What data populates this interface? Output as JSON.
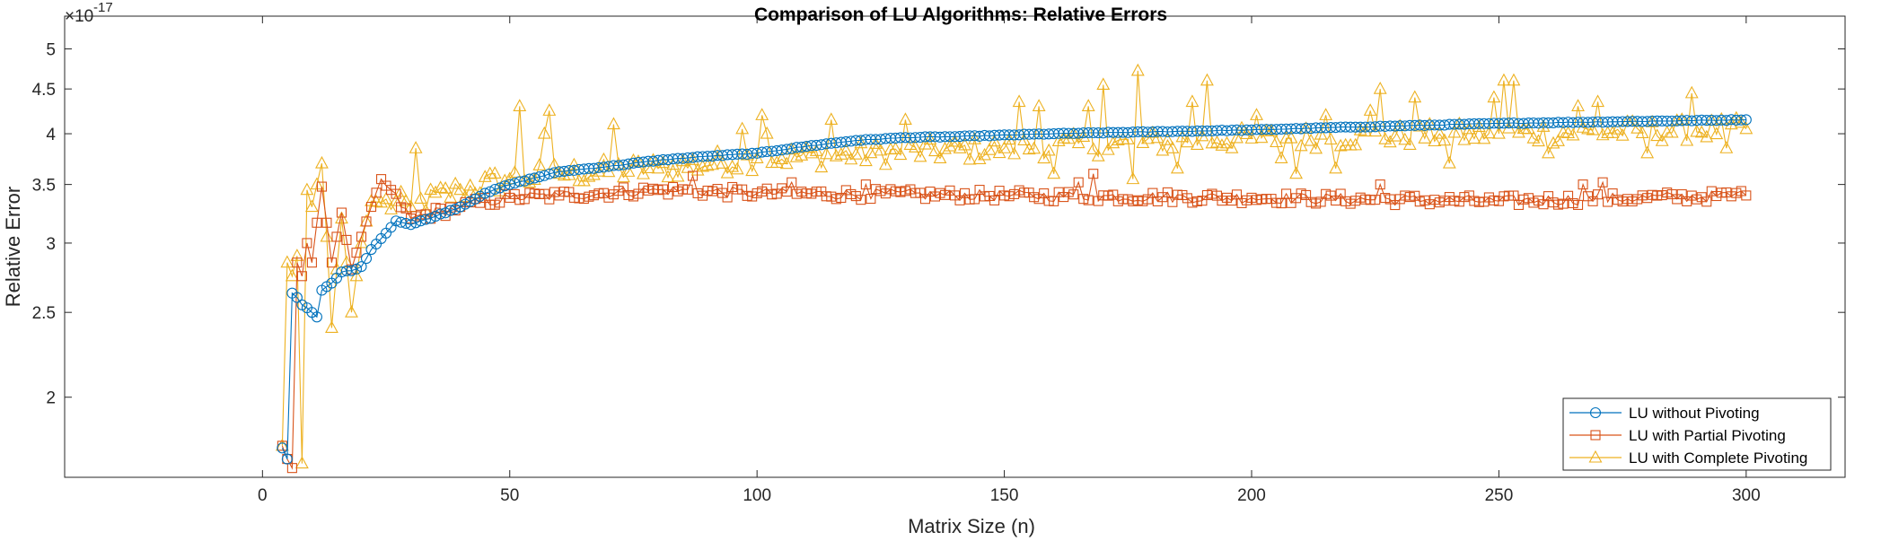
{
  "chart_data": {
    "type": "line",
    "title": "Comparison of LU Algorithms: Relative Errors",
    "xlabel": "Matrix Size (n)",
    "ylabel": "Relative Error",
    "y_exponent_label": "×10",
    "y_exponent_power": "-17",
    "y_scale": "log",
    "xlim": [
      -40,
      320
    ],
    "ylim": [
      1.62,
      5.45
    ],
    "x_ticks": [
      0,
      50,
      100,
      150,
      200,
      250,
      300
    ],
    "x_tick_labels": [
      "0",
      "50",
      "100",
      "150",
      "200",
      "250",
      "300"
    ],
    "y_ticks": [
      2,
      2.5,
      3,
      3.5,
      4,
      4.5,
      5
    ],
    "y_tick_labels": [
      "2",
      "2.5",
      "3",
      "3.5",
      "4",
      "4.5",
      "5"
    ],
    "legend_position": "bottom-right",
    "x_range": [
      4,
      300
    ],
    "series": [
      {
        "name": "LU without Pivoting",
        "color": "#0072BD",
        "marker": "circle",
        "key_values": {
          "4": 1.75,
          "5": 1.7,
          "6": 2.63,
          "7": 2.6,
          "8": 2.55,
          "9": 2.53,
          "10": 2.5,
          "11": 2.47,
          "12": 2.65,
          "14": 2.7,
          "16": 2.78,
          "18": 2.79,
          "20": 2.82,
          "22": 2.95,
          "25": 3.08,
          "27": 3.18,
          "30": 3.15,
          "35": 3.22,
          "40": 3.3,
          "45": 3.42,
          "50": 3.5,
          "60": 3.62,
          "70": 3.67,
          "80": 3.73,
          "90": 3.77,
          "100": 3.8,
          "110": 3.87,
          "120": 3.93,
          "130": 3.96,
          "140": 3.97,
          "160": 4.0,
          "180": 4.02,
          "200": 4.04,
          "220": 4.07,
          "250": 4.11,
          "275": 4.13,
          "300": 4.15
        }
      },
      {
        "name": "LU with Partial Pivoting",
        "color": "#D95319",
        "marker": "square",
        "key_values": {
          "4": 1.76,
          "5": 1.7,
          "6": 1.66,
          "7": 2.85,
          "8": 2.75,
          "9": 3.0,
          "10": 2.85,
          "12": 3.48,
          "14": 2.85,
          "16": 3.25,
          "18": 2.8,
          "20": 3.05,
          "22": 3.3,
          "24": 3.55,
          "30": 3.2,
          "40": 3.3,
          "50": 3.38,
          "60": 3.4,
          "80": 3.45,
          "100": 3.42,
          "150": 3.4,
          "200": 3.38,
          "250": 3.35,
          "300": 3.4
        },
        "spikes": {
          "87": 3.58,
          "107": 3.52,
          "122": 3.5,
          "165": 3.52,
          "168": 3.6,
          "226": 3.5,
          "267": 3.5,
          "271": 3.52,
          "299": 3.44
        }
      },
      {
        "name": "LU with Complete Pivoting",
        "color": "#EDB120",
        "marker": "triangle",
        "key_values": {
          "4": 1.76,
          "5": 2.85,
          "6": 2.75,
          "7": 2.9,
          "8": 1.68,
          "9": 3.45,
          "10": 3.3,
          "12": 3.7,
          "14": 2.4,
          "16": 3.2,
          "18": 2.5,
          "20": 3.0,
          "22": 3.35,
          "30": 3.3,
          "40": 3.45,
          "50": 3.55,
          "60": 3.6,
          "80": 3.65,
          "100": 3.75,
          "150": 3.85,
          "200": 3.95,
          "250": 4.0,
          "300": 4.05
        },
        "spikes": {
          "31": 3.85,
          "52": 4.3,
          "57": 4.0,
          "58": 4.25,
          "71": 4.1,
          "97": 4.05,
          "101": 4.2,
          "102": 4.0,
          "115": 4.15,
          "130": 4.15,
          "153": 4.35,
          "157": 4.3,
          "167": 4.3,
          "170": 4.55,
          "177": 4.72,
          "188": 4.35,
          "191": 4.6,
          "201": 4.2,
          "209": 3.6,
          "215": 4.2,
          "224": 4.25,
          "226": 4.5,
          "233": 4.4,
          "238": 4.0,
          "249": 4.4,
          "251": 4.6,
          "253": 4.6,
          "266": 4.3,
          "270": 4.35,
          "289": 4.45
        },
        "dips": {
          "160": 3.6,
          "176": 3.55,
          "185": 3.65,
          "206": 3.75,
          "217": 3.65,
          "240": 3.7,
          "260": 3.8,
          "280": 3.8,
          "296": 3.85
        }
      }
    ]
  }
}
